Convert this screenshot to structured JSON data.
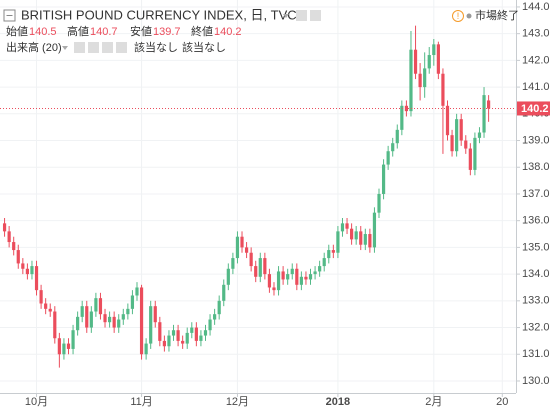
{
  "header": {
    "title": "BRITISH POUND CURRENCY INDEX, 日, TVC",
    "ohlc": [
      {
        "label": "始値",
        "value": 140.5
      },
      {
        "label": "高値",
        "value": 140.7
      },
      {
        "label": "安値",
        "value": 139.7
      },
      {
        "label": "終値",
        "value": 140.2
      }
    ],
    "volume_label": "出来高 (20)",
    "volume_values": [
      "該当なし",
      "該当なし"
    ],
    "status": "市場終了"
  },
  "chart_data": {
    "type": "candlestick",
    "up_color": "#53b987",
    "down_color": "#eb4d5c",
    "grid": true,
    "last_price": 140.2,
    "xlim": [
      -1,
      112
    ],
    "xticks": [
      {
        "value": 7,
        "label": "10月"
      },
      {
        "value": 30,
        "label": "11月"
      },
      {
        "value": 51,
        "label": "12月"
      },
      {
        "value": 73,
        "label": "2018"
      },
      {
        "value": 94,
        "label": "2月"
      },
      {
        "value": 109,
        "label": "20"
      }
    ],
    "ylim": [
      129.55,
      144.26
    ],
    "yticks": [
      {
        "value": 130,
        "label": "130.0"
      },
      {
        "value": 131,
        "label": "131.0"
      },
      {
        "value": 132,
        "label": "132.0"
      },
      {
        "value": 133,
        "label": "133.0"
      },
      {
        "value": 134,
        "label": "134.0"
      },
      {
        "value": 135,
        "label": "135.0"
      },
      {
        "value": 136,
        "label": "136.0"
      },
      {
        "value": 137,
        "label": "137.0"
      },
      {
        "value": 138,
        "label": "138.0"
      },
      {
        "value": 139,
        "label": "139.0"
      },
      {
        "value": 140,
        "label": "140.0"
      },
      {
        "value": 141,
        "label": "141.0"
      },
      {
        "value": 142,
        "label": "142.0"
      },
      {
        "value": 143,
        "label": "143.0"
      },
      {
        "value": 144,
        "label": "144.0"
      }
    ],
    "ohlc": [
      [
        135.9,
        136.1,
        135.4,
        135.6
      ],
      [
        135.6,
        135.8,
        135.0,
        135.2
      ],
      [
        135.2,
        135.4,
        134.7,
        134.9
      ],
      [
        134.9,
        135.1,
        134.2,
        134.4
      ],
      [
        134.4,
        134.6,
        134.0,
        134.2
      ],
      [
        134.2,
        134.4,
        133.8,
        134.0
      ],
      [
        134.0,
        134.5,
        133.8,
        134.3
      ],
      [
        134.3,
        134.5,
        133.2,
        133.4
      ],
      [
        133.4,
        133.6,
        132.7,
        132.9
      ],
      [
        132.9,
        133.1,
        132.5,
        132.7
      ],
      [
        132.7,
        132.9,
        132.4,
        132.6
      ],
      [
        132.6,
        132.8,
        131.4,
        131.6
      ],
      [
        131.6,
        131.8,
        130.5,
        131.0
      ],
      [
        131.0,
        131.6,
        130.8,
        131.4
      ],
      [
        131.4,
        131.6,
        131.0,
        131.2
      ],
      [
        131.2,
        132.1,
        131.0,
        131.9
      ],
      [
        131.9,
        132.6,
        131.7,
        132.4
      ],
      [
        132.4,
        133.0,
        132.2,
        132.8
      ],
      [
        132.8,
        133.0,
        131.8,
        132.0
      ],
      [
        132.0,
        132.8,
        131.8,
        132.6
      ],
      [
        132.6,
        133.3,
        132.4,
        133.1
      ],
      [
        133.1,
        133.3,
        132.3,
        132.5
      ],
      [
        132.5,
        132.7,
        132.0,
        132.2
      ],
      [
        132.2,
        132.6,
        132.0,
        132.4
      ],
      [
        132.4,
        132.6,
        131.8,
        132.0
      ],
      [
        132.0,
        132.5,
        131.8,
        132.3
      ],
      [
        132.3,
        132.7,
        132.1,
        132.5
      ],
      [
        132.5,
        132.9,
        132.3,
        132.7
      ],
      [
        132.7,
        133.4,
        132.5,
        133.2
      ],
      [
        133.2,
        133.7,
        133.0,
        133.5
      ],
      [
        133.5,
        133.6,
        130.8,
        131.0
      ],
      [
        131.0,
        131.6,
        130.8,
        131.4
      ],
      [
        131.4,
        133.0,
        131.2,
        132.8
      ],
      [
        132.8,
        133.0,
        132.0,
        132.2
      ],
      [
        132.2,
        132.4,
        131.3,
        131.5
      ],
      [
        131.5,
        131.7,
        131.1,
        131.3
      ],
      [
        131.3,
        131.9,
        131.1,
        131.7
      ],
      [
        131.7,
        132.1,
        131.5,
        131.9
      ],
      [
        131.9,
        132.1,
        131.3,
        131.5
      ],
      [
        131.5,
        131.7,
        131.2,
        131.4
      ],
      [
        131.4,
        132.0,
        131.2,
        131.8
      ],
      [
        131.8,
        132.2,
        131.6,
        132.0
      ],
      [
        132.0,
        132.2,
        131.3,
        131.5
      ],
      [
        131.5,
        131.9,
        131.3,
        131.7
      ],
      [
        131.7,
        132.1,
        131.5,
        131.9
      ],
      [
        131.9,
        132.5,
        131.7,
        132.3
      ],
      [
        132.3,
        132.7,
        132.1,
        132.5
      ],
      [
        132.5,
        133.2,
        132.3,
        133.0
      ],
      [
        133.0,
        133.8,
        132.8,
        133.6
      ],
      [
        133.6,
        134.4,
        133.4,
        134.2
      ],
      [
        134.2,
        134.8,
        134.0,
        134.6
      ],
      [
        134.6,
        135.6,
        134.4,
        135.4
      ],
      [
        135.4,
        135.6,
        134.8,
        135.0
      ],
      [
        135.0,
        135.2,
        134.6,
        134.8
      ],
      [
        134.8,
        135.0,
        134.1,
        134.3
      ],
      [
        134.3,
        134.5,
        133.7,
        133.9
      ],
      [
        133.9,
        134.8,
        133.7,
        134.6
      ],
      [
        134.6,
        134.8,
        133.8,
        134.0
      ],
      [
        134.0,
        134.2,
        133.3,
        133.5
      ],
      [
        133.5,
        133.7,
        133.2,
        133.4
      ],
      [
        133.4,
        134.3,
        133.2,
        134.1
      ],
      [
        134.1,
        134.3,
        133.6,
        133.8
      ],
      [
        133.8,
        134.2,
        133.6,
        134.0
      ],
      [
        134.0,
        134.4,
        133.8,
        134.2
      ],
      [
        134.2,
        134.4,
        133.4,
        133.6
      ],
      [
        133.6,
        134.1,
        133.4,
        133.9
      ],
      [
        133.9,
        134.1,
        133.6,
        133.8
      ],
      [
        133.8,
        134.2,
        133.6,
        134.0
      ],
      [
        134.0,
        134.3,
        133.8,
        134.1
      ],
      [
        134.1,
        134.5,
        133.9,
        134.3
      ],
      [
        134.3,
        134.8,
        134.1,
        134.6
      ],
      [
        134.6,
        135.1,
        134.4,
        134.9
      ],
      [
        134.9,
        135.1,
        134.6,
        134.8
      ],
      [
        134.8,
        135.8,
        134.6,
        135.6
      ],
      [
        135.6,
        136.1,
        135.4,
        135.9
      ],
      [
        135.9,
        136.1,
        135.5,
        135.7
      ],
      [
        135.7,
        135.9,
        135.1,
        135.3
      ],
      [
        135.3,
        135.8,
        135.1,
        135.6
      ],
      [
        135.6,
        135.8,
        134.9,
        135.1
      ],
      [
        135.1,
        135.7,
        134.9,
        135.5
      ],
      [
        135.5,
        135.7,
        134.8,
        135.0
      ],
      [
        135.0,
        136.5,
        134.8,
        136.3
      ],
      [
        136.3,
        137.2,
        136.1,
        137.0
      ],
      [
        137.0,
        138.3,
        136.8,
        138.1
      ],
      [
        138.1,
        138.8,
        137.9,
        138.6
      ],
      [
        138.6,
        139.1,
        138.4,
        138.9
      ],
      [
        138.9,
        139.6,
        138.7,
        139.4
      ],
      [
        139.4,
        140.5,
        139.2,
        140.3
      ],
      [
        140.3,
        140.5,
        139.9,
        140.1
      ],
      [
        140.1,
        143.1,
        139.9,
        142.4
      ],
      [
        142.4,
        143.3,
        141.3,
        141.5
      ],
      [
        141.5,
        141.9,
        140.5,
        141.0
      ],
      [
        141.0,
        142.3,
        140.6,
        141.7
      ],
      [
        141.7,
        142.5,
        141.5,
        142.2
      ],
      [
        142.2,
        142.8,
        141.8,
        142.6
      ],
      [
        142.6,
        142.7,
        141.3,
        141.5
      ],
      [
        141.5,
        141.7,
        138.5,
        140.3
      ],
      [
        140.3,
        140.5,
        139.0,
        139.2
      ],
      [
        139.2,
        139.4,
        138.4,
        138.6
      ],
      [
        138.6,
        140.0,
        138.4,
        139.8
      ],
      [
        139.8,
        140.0,
        138.8,
        139.0
      ],
      [
        139.0,
        139.2,
        138.5,
        138.7
      ],
      [
        138.7,
        138.9,
        137.7,
        137.9
      ],
      [
        137.9,
        139.3,
        137.7,
        139.1
      ],
      [
        139.1,
        139.5,
        138.9,
        139.3
      ],
      [
        139.3,
        141.0,
        139.1,
        140.7
      ],
      [
        140.5,
        140.7,
        139.7,
        140.2
      ]
    ]
  }
}
